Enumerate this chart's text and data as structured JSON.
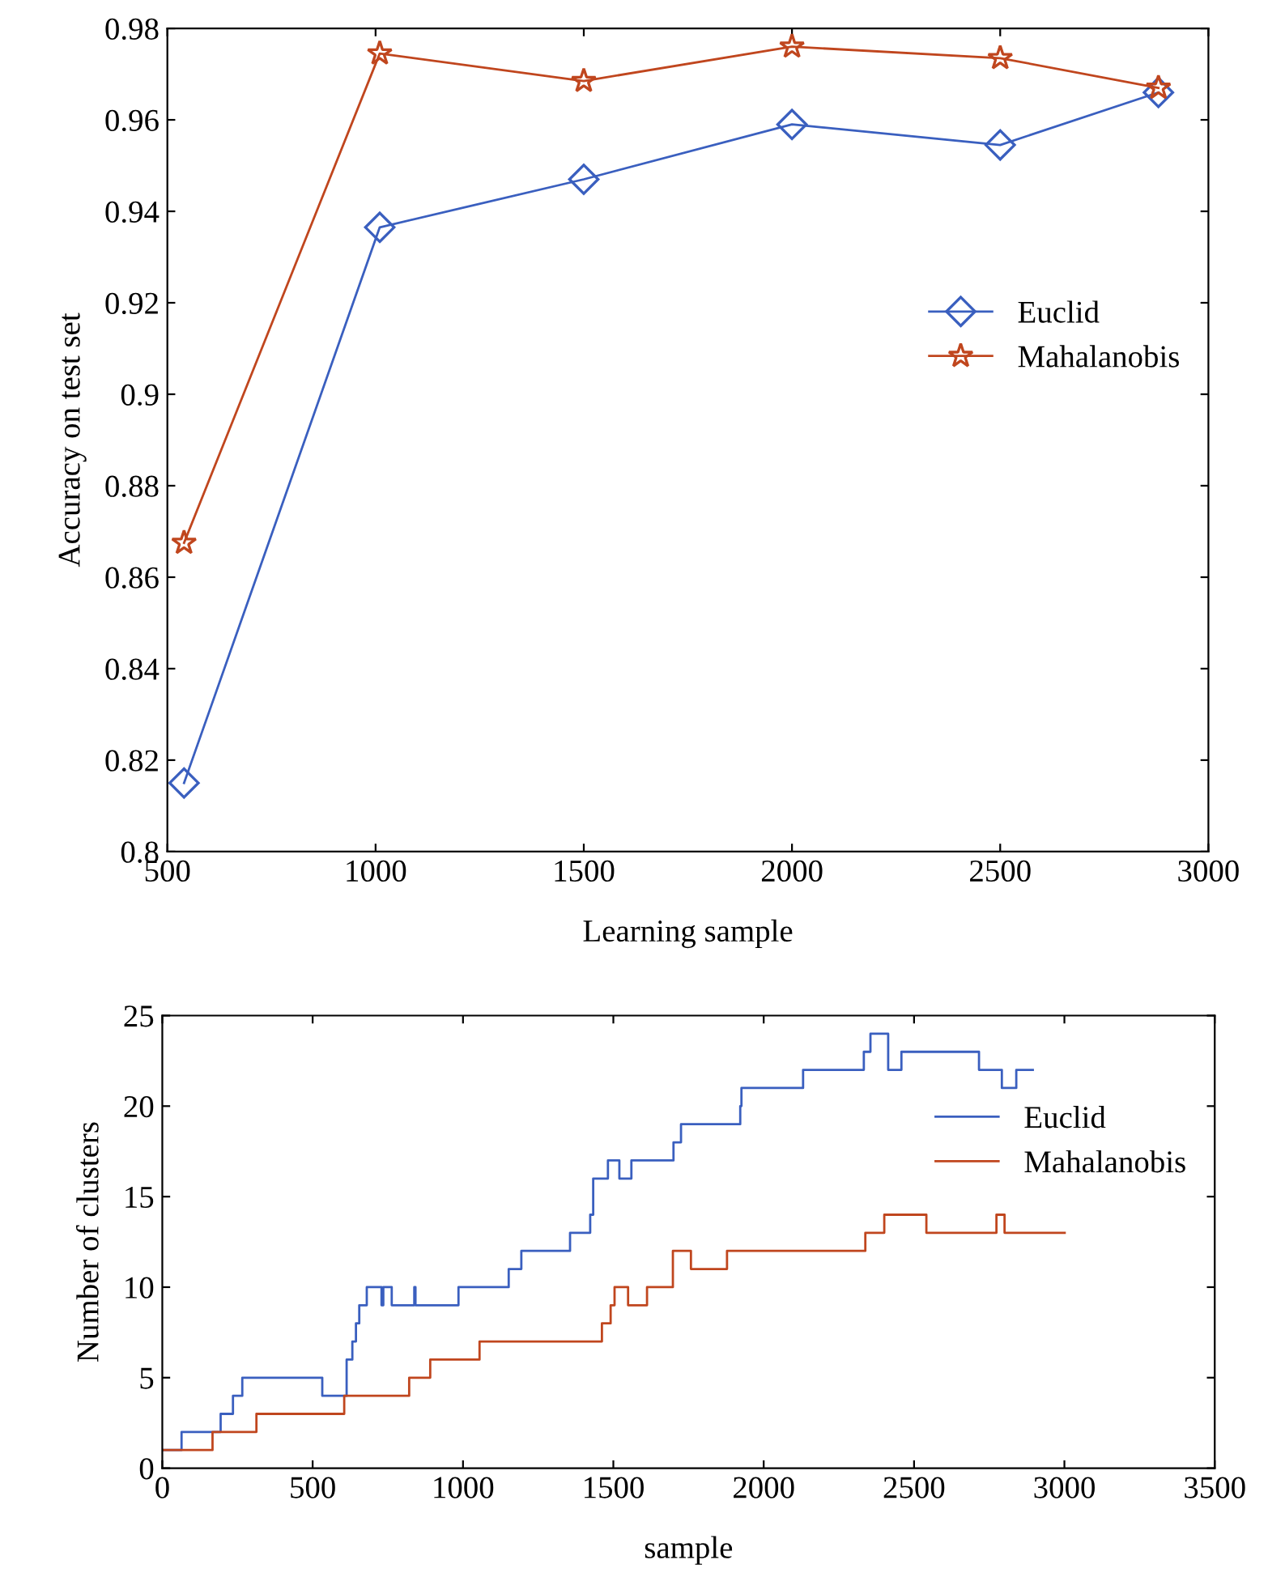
{
  "chart_data": [
    {
      "type": "line",
      "xlabel": "Learning sample",
      "ylabel": "Accuracy on test set",
      "xlim": [
        500,
        3000
      ],
      "ylim": [
        0.8,
        0.98
      ],
      "xticks": [
        500,
        1000,
        1500,
        2000,
        2500,
        3000
      ],
      "yticks": [
        0.8,
        0.82,
        0.84,
        0.86,
        0.88,
        0.9,
        0.92,
        0.94,
        0.96,
        0.98
      ],
      "grid": false,
      "legend": "right",
      "line_style": "solid",
      "x": [
        540,
        1010,
        1500,
        2000,
        2500,
        2880
      ],
      "series": [
        {
          "name": "Euclid",
          "color": "#3a5fbf",
          "marker": "diamond",
          "values": [
            0.815,
            0.9365,
            0.947,
            0.959,
            0.9545,
            0.966
          ]
        },
        {
          "name": "Mahalanobis",
          "color": "#c0461e",
          "marker": "star",
          "values": [
            0.8675,
            0.9745,
            0.9685,
            0.976,
            0.9735,
            0.967
          ]
        }
      ]
    },
    {
      "type": "step",
      "xlabel": "sample",
      "ylabel": "Number of clusters",
      "xlim": [
        0,
        3500
      ],
      "ylim": [
        0,
        25
      ],
      "xticks": [
        0,
        500,
        1000,
        1500,
        2000,
        2500,
        3000,
        3500
      ],
      "yticks": [
        0,
        5,
        10,
        15,
        20,
        25
      ],
      "grid": false,
      "legend": "right",
      "marker": "none",
      "line_style": "solid",
      "series": [
        {
          "name": "Euclid",
          "color": "#3a5fbf",
          "x": [
            0,
            64,
            194,
            235,
            266,
            532,
            613,
            632,
            644,
            655,
            680,
            729,
            735,
            763,
            838,
            842,
            985,
            1152,
            1194,
            1356,
            1423,
            1433,
            1482,
            1520,
            1560,
            1700,
            1725,
            1922,
            1926,
            2131,
            2333,
            2355,
            2414,
            2458,
            2716,
            2792,
            2840,
            2895
          ],
          "values": [
            1,
            2,
            3,
            4,
            5,
            4,
            6,
            7,
            8,
            9,
            10,
            9,
            10,
            9,
            10,
            9,
            10,
            11,
            12,
            13,
            14,
            16,
            17,
            16,
            17,
            18,
            19,
            20,
            21,
            22,
            23,
            24,
            22,
            23,
            22,
            21,
            22,
            22
          ]
        },
        {
          "name": "Mahalanobis",
          "color": "#c0461e",
          "x": [
            0,
            167,
            313,
            605,
            821,
            891,
            1055,
            1462,
            1491,
            1504,
            1549,
            1612,
            1698,
            1758,
            1878,
            2338,
            2401,
            2541,
            2774,
            2801,
            3001
          ],
          "values": [
            1,
            2,
            3,
            4,
            5,
            6,
            7,
            8,
            9,
            10,
            9,
            10,
            12,
            11,
            12,
            13,
            14,
            13,
            14,
            13,
            13
          ]
        }
      ]
    }
  ]
}
